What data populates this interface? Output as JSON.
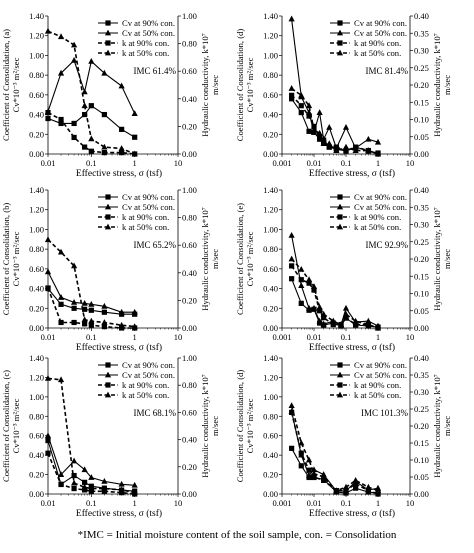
{
  "footnote": "*IMC = Initial moisture content of the soil sample, con. = Consolidation",
  "chart_data": [
    {
      "type": "line",
      "panel_label": "(a)",
      "x_scale": "log",
      "xlim": [
        0.01,
        10
      ],
      "x_ticks": [
        "0.01",
        "0.1",
        "1",
        "10"
      ],
      "xlabel": "Effective stress, σ (tsf)",
      "ylabel_left": "Coefficient of Consolidation, (a) Cv*10⁻³ m²/sec",
      "ylim_left": [
        0,
        1.4
      ],
      "yticks_left": [
        "0.00",
        "0.20",
        "0.40",
        "0.60",
        "0.80",
        "1.00",
        "1.20",
        "1.40"
      ],
      "ylabel_right": "Hydraulic conductivity, k*10⁷ m/sec",
      "ylim_right": [
        0,
        1.0
      ],
      "yticks_right": [
        "0.00",
        "0.20",
        "0.40",
        "0.60",
        "0.80",
        "1.00"
      ],
      "annotation": "IMC 61.4%",
      "legend": "top-right",
      "series": [
        {
          "name": "Cv at 90% con.",
          "axis": "left",
          "style": "solid",
          "marker": "square",
          "x": [
            0.01,
            0.02,
            0.04,
            0.07,
            0.1,
            0.2,
            0.5,
            1
          ],
          "y": [
            0.36,
            0.31,
            0.31,
            0.4,
            0.49,
            0.4,
            0.25,
            0.17
          ]
        },
        {
          "name": "Cv at 50% con.",
          "axis": "left",
          "style": "solid",
          "marker": "triangle",
          "x": [
            0.01,
            0.02,
            0.04,
            0.07,
            0.1,
            0.2,
            0.5,
            1
          ],
          "y": [
            0.43,
            0.82,
            0.95,
            0.63,
            0.94,
            0.82,
            0.69,
            0.41
          ]
        },
        {
          "name": "k at 90% con.",
          "axis": "right",
          "style": "dashed",
          "marker": "square",
          "x": [
            0.01,
            0.02,
            0.04,
            0.07,
            0.1,
            0.2,
            0.5,
            1
          ],
          "y": [
            0.3,
            0.25,
            0.12,
            0.05,
            0.02,
            0.01,
            0.01,
            0.0
          ]
        },
        {
          "name": "k at 50% con.",
          "axis": "right",
          "style": "dashed",
          "marker": "triangle",
          "x": [
            0.01,
            0.02,
            0.04,
            0.07,
            0.1,
            0.2,
            0.5,
            1
          ],
          "y": [
            0.89,
            0.85,
            0.79,
            0.35,
            0.11,
            0.05,
            0.04,
            0.0
          ]
        }
      ]
    },
    {
      "type": "line",
      "panel_label": "(d)",
      "x_scale": "log",
      "xlim": [
        0.001,
        10
      ],
      "x_ticks": [
        "0.001",
        "0.01",
        "0.1",
        "1",
        "10"
      ],
      "xlabel": "Effective stress, σ (tsf)",
      "ylabel_left": "Coefficient of Consolidation, (d) Cv*10⁻³ m²/sec",
      "ylim_left": [
        0,
        1.4
      ],
      "yticks_left": [
        "0.00",
        "0.20",
        "0.40",
        "0.60",
        "0.80",
        "1.00",
        "1.20",
        "1.40"
      ],
      "ylabel_right": "Hydraulic conductivity, k*10⁷ m/sec",
      "ylim_right": [
        0,
        0.4
      ],
      "yticks_right": [
        "0.00",
        "0.05",
        "0.10",
        "0.15",
        "0.20",
        "0.25",
        "0.30",
        "0.35",
        "0.40"
      ],
      "annotation": "IMC 81.4%",
      "legend": "top-right",
      "series": [
        {
          "name": "Cv at 90% con.",
          "axis": "left",
          "style": "solid",
          "marker": "square",
          "x": [
            0.002,
            0.004,
            0.007,
            0.01,
            0.015,
            0.02,
            0.03,
            0.05,
            0.1,
            0.2,
            0.5,
            1
          ],
          "y": [
            0.56,
            0.42,
            0.23,
            0.22,
            0.15,
            0.12,
            0.07,
            0.05,
            0.03,
            0.07,
            0.03,
            0.01
          ]
        },
        {
          "name": "Cv at 50% con.",
          "axis": "left",
          "style": "solid",
          "marker": "triangle",
          "x": [
            0.002,
            0.004,
            0.007,
            0.01,
            0.015,
            0.02,
            0.03,
            0.05,
            0.1,
            0.2,
            0.5,
            1
          ],
          "y": [
            1.37,
            0.58,
            0.42,
            0.22,
            0.42,
            0.15,
            0.27,
            0.06,
            0.27,
            0.06,
            0.15,
            0.12
          ]
        },
        {
          "name": "k at 90% con.",
          "axis": "right",
          "style": "dashed",
          "marker": "square",
          "x": [
            0.002,
            0.004,
            0.007,
            0.01,
            0.015,
            0.02,
            0.03,
            0.05,
            0.1,
            0.2,
            0.5,
            1
          ],
          "y": [
            0.17,
            0.14,
            0.11,
            0.08,
            0.05,
            0.04,
            0.02,
            0.02,
            0.01,
            0.02,
            0.01,
            0.0
          ]
        },
        {
          "name": "k at 50% con.",
          "axis": "right",
          "style": "dashed",
          "marker": "triangle",
          "x": [
            0.002,
            0.004,
            0.007,
            0.01,
            0.015,
            0.02,
            0.03,
            0.05,
            0.1,
            0.2,
            0.5,
            1
          ],
          "y": [
            0.19,
            0.17,
            0.14,
            0.07,
            0.06,
            0.03,
            0.03,
            0.01,
            0.02,
            0.01,
            0.01,
            0.0
          ]
        }
      ]
    },
    {
      "type": "line",
      "panel_label": "(b)",
      "x_scale": "log",
      "xlim": [
        0.01,
        10
      ],
      "x_ticks": [
        "0.01",
        "0.1",
        "1",
        "10"
      ],
      "xlabel": "Effective stress, σ (tsf)",
      "ylabel_left": "Coefficient of Consolidation, (b) Cv*10⁻³ m²/sec",
      "ylim_left": [
        0,
        1.4
      ],
      "yticks_left": [
        "0.00",
        "0.20",
        "0.40",
        "0.60",
        "0.80",
        "1.00",
        "1.20",
        "1.40"
      ],
      "ylabel_right": "Hydraulic conductivity, k*10⁷ m/sec",
      "ylim_right": [
        0,
        1.0
      ],
      "yticks_right": [
        "0.00",
        "0.20",
        "0.40",
        "0.60",
        "0.80",
        "1.00"
      ],
      "annotation": "IMC 65.2%",
      "legend": "top-right",
      "series": [
        {
          "name": "Cv at 90% con.",
          "axis": "left",
          "style": "solid",
          "marker": "square",
          "x": [
            0.01,
            0.02,
            0.04,
            0.07,
            0.1,
            0.2,
            0.5,
            1
          ],
          "y": [
            0.4,
            0.24,
            0.2,
            0.19,
            0.18,
            0.16,
            0.14,
            0.14
          ]
        },
        {
          "name": "Cv at 50% con.",
          "axis": "left",
          "style": "solid",
          "marker": "triangle",
          "x": [
            0.01,
            0.02,
            0.04,
            0.07,
            0.1,
            0.2,
            0.5,
            1
          ],
          "y": [
            0.57,
            0.31,
            0.26,
            0.25,
            0.24,
            0.22,
            0.16,
            0.16
          ]
        },
        {
          "name": "k at 90% con.",
          "axis": "right",
          "style": "dashed",
          "marker": "square",
          "x": [
            0.01,
            0.02,
            0.04,
            0.07,
            0.1,
            0.2,
            0.5,
            1
          ],
          "y": [
            0.29,
            0.04,
            0.04,
            0.03,
            0.02,
            0.01,
            0.0,
            0.0
          ]
        },
        {
          "name": "k at 50% con.",
          "axis": "right",
          "style": "dashed",
          "marker": "triangle",
          "x": [
            0.01,
            0.02,
            0.04,
            0.07,
            0.1,
            0.2,
            0.5,
            1
          ],
          "y": [
            0.64,
            0.55,
            0.45,
            0.06,
            0.05,
            0.04,
            0.02,
            0.01
          ]
        }
      ]
    },
    {
      "type": "line",
      "panel_label": "(e)",
      "x_scale": "log",
      "xlim": [
        0.001,
        10
      ],
      "x_ticks": [
        "0.001",
        "0.01",
        "0.1",
        "1",
        "10"
      ],
      "xlabel": "Effective stress, σ (tsf)",
      "ylabel_left": "Coefficient of Consolidation, (e) Cv*10⁻³ m²/sec",
      "ylim_left": [
        0,
        1.4
      ],
      "yticks_left": [
        "0.00",
        "0.20",
        "0.40",
        "0.60",
        "0.80",
        "1.00",
        "1.20",
        "1.40"
      ],
      "ylabel_right": "Hydraulic conductivity, k*10⁷ m/sec",
      "ylim_right": [
        0,
        0.4
      ],
      "yticks_right": [
        "0.00",
        "0.05",
        "0.10",
        "0.15",
        "0.20",
        "0.25",
        "0.30",
        "0.35",
        "0.40"
      ],
      "annotation": "IMC 92.9%",
      "legend": "top-right",
      "series": [
        {
          "name": "Cv at 90% con.",
          "axis": "left",
          "style": "solid",
          "marker": "square",
          "x": [
            0.002,
            0.004,
            0.007,
            0.01,
            0.015,
            0.02,
            0.04,
            0.07,
            0.1,
            0.2,
            0.5,
            1
          ],
          "y": [
            0.5,
            0.25,
            0.18,
            0.19,
            0.05,
            0.03,
            0.05,
            0.02,
            0.1,
            0.03,
            0.02,
            0.01
          ]
        },
        {
          "name": "Cv at 50% con.",
          "axis": "left",
          "style": "solid",
          "marker": "triangle",
          "x": [
            0.002,
            0.004,
            0.007,
            0.01,
            0.015,
            0.02,
            0.04,
            0.07,
            0.1,
            0.2,
            0.5,
            1
          ],
          "y": [
            0.94,
            0.43,
            0.2,
            0.2,
            0.07,
            0.04,
            0.07,
            0.03,
            0.2,
            0.06,
            0.07,
            0.02
          ]
        },
        {
          "name": "k at 90% con.",
          "axis": "right",
          "style": "dashed",
          "marker": "square",
          "x": [
            0.002,
            0.004,
            0.007,
            0.01,
            0.015,
            0.02,
            0.04,
            0.07,
            0.1,
            0.2,
            0.5,
            1
          ],
          "y": [
            0.18,
            0.14,
            0.13,
            0.11,
            0.05,
            0.03,
            0.01,
            0.01,
            0.03,
            0.01,
            0.01,
            0.0
          ]
        },
        {
          "name": "k at 50% con.",
          "axis": "right",
          "style": "dashed",
          "marker": "triangle",
          "x": [
            0.002,
            0.004,
            0.007,
            0.01,
            0.015,
            0.02,
            0.04,
            0.07,
            0.1,
            0.2,
            0.5,
            1
          ],
          "y": [
            0.2,
            0.17,
            0.14,
            0.12,
            0.06,
            0.04,
            0.02,
            0.01,
            0.04,
            0.02,
            0.01,
            0.0
          ]
        }
      ]
    },
    {
      "type": "line",
      "panel_label": "(c)",
      "x_scale": "log",
      "xlim": [
        0.01,
        10
      ],
      "x_ticks": [
        "0.01",
        "0.1",
        "1",
        "10"
      ],
      "xlabel": "Effective stress, σ (tsf)",
      "ylabel_left": "Coefficient of Consolidation, (c) Cv*10⁻³ m²/sec",
      "ylim_left": [
        0,
        1.4
      ],
      "yticks_left": [
        "0.00",
        "0.20",
        "0.40",
        "0.60",
        "0.80",
        "1.00",
        "1.20",
        "1.40"
      ],
      "ylabel_right": "Hydraulic conductivity, k*10⁷ m/sec",
      "ylim_right": [
        0,
        1.0
      ],
      "yticks_right": [
        "0.00",
        "0.20",
        "0.40",
        "0.60",
        "0.80",
        "1.00"
      ],
      "annotation": "IMC 68.1%",
      "legend": "top-right",
      "series": [
        {
          "name": "Cv at 90% con.",
          "axis": "left",
          "style": "solid",
          "marker": "square",
          "x": [
            0.01,
            0.02,
            0.04,
            0.07,
            0.1,
            0.2,
            0.5,
            1
          ],
          "y": [
            0.55,
            0.1,
            0.19,
            0.12,
            0.08,
            0.06,
            0.04,
            0.03
          ]
        },
        {
          "name": "Cv at 50% con.",
          "axis": "left",
          "style": "solid",
          "marker": "triangle",
          "x": [
            0.01,
            0.02,
            0.04,
            0.07,
            0.1,
            0.2,
            0.5,
            1
          ],
          "y": [
            0.6,
            0.2,
            0.34,
            0.25,
            0.17,
            0.13,
            0.1,
            0.09
          ]
        },
        {
          "name": "k at 90% con.",
          "axis": "right",
          "style": "dashed",
          "marker": "square",
          "x": [
            0.01,
            0.02,
            0.04,
            0.07,
            0.1,
            0.2,
            0.5,
            1
          ],
          "y": [
            0.3,
            0.07,
            0.04,
            0.03,
            0.02,
            0.02,
            0.01,
            0.0
          ]
        },
        {
          "name": "k at 50% con.",
          "axis": "right",
          "style": "dashed",
          "marker": "triangle",
          "x": [
            0.01,
            0.02,
            0.04,
            0.07,
            0.1,
            0.2,
            0.5,
            1
          ],
          "y": [
            0.85,
            0.84,
            0.08,
            0.05,
            0.04,
            0.04,
            0.03,
            0.01
          ]
        }
      ]
    },
    {
      "type": "line",
      "panel_label": "(d)",
      "x_scale": "log",
      "xlim": [
        0.001,
        10
      ],
      "x_ticks": [
        "0.001",
        "0.01",
        "0.1",
        "1",
        "10"
      ],
      "xlabel": "Effective stress, σ (tsf)",
      "ylabel_left": "Coefficient of Consolidation, (d) Cv*10⁻³ m²/sec",
      "ylim_left": [
        0,
        1.4
      ],
      "yticks_left": [
        "0.00",
        "0.20",
        "0.40",
        "0.60",
        "0.80",
        "1.00",
        "1.20",
        "1.40"
      ],
      "ylabel_right": "Hydraulic conductivity, k*10⁷ m/sec",
      "ylim_right": [
        0,
        0.4
      ],
      "yticks_right": [
        "0.00",
        "0.05",
        "0.10",
        "0.15",
        "0.20",
        "0.25",
        "0.30",
        "0.35",
        "0.40"
      ],
      "annotation": "IMC 101.3%",
      "legend": "top-right",
      "series": [
        {
          "name": "Cv at 90% con.",
          "axis": "left",
          "style": "solid",
          "marker": "square",
          "x": [
            0.002,
            0.004,
            0.007,
            0.01,
            0.02,
            0.05,
            0.1,
            0.2,
            0.5,
            1
          ],
          "y": [
            0.47,
            0.29,
            0.17,
            0.17,
            0.15,
            0.02,
            0.01,
            0.06,
            0.02,
            0.01
          ]
        },
        {
          "name": "Cv at 50% con.",
          "axis": "left",
          "style": "solid",
          "marker": "triangle",
          "x": [
            0.002,
            0.004,
            0.007,
            0.01,
            0.02,
            0.05,
            0.1,
            0.2,
            0.5,
            1
          ],
          "y": [
            0.85,
            0.4,
            0.19,
            0.25,
            0.2,
            0.03,
            0.03,
            0.13,
            0.04,
            0.06
          ]
        },
        {
          "name": "k at 90% con.",
          "axis": "right",
          "style": "dashed",
          "marker": "square",
          "x": [
            0.002,
            0.004,
            0.007,
            0.01,
            0.02,
            0.05,
            0.1,
            0.2,
            0.5,
            1
          ],
          "y": [
            0.24,
            0.12,
            0.07,
            0.05,
            0.04,
            0.01,
            0.01,
            0.03,
            0.01,
            0.0
          ]
        },
        {
          "name": "k at 50% con.",
          "axis": "right",
          "style": "dashed",
          "marker": "triangle",
          "x": [
            0.002,
            0.004,
            0.007,
            0.01,
            0.02,
            0.05,
            0.1,
            0.2,
            0.5,
            1
          ],
          "y": [
            0.26,
            0.15,
            0.1,
            0.06,
            0.05,
            0.01,
            0.02,
            0.04,
            0.02,
            0.01
          ]
        }
      ]
    }
  ]
}
